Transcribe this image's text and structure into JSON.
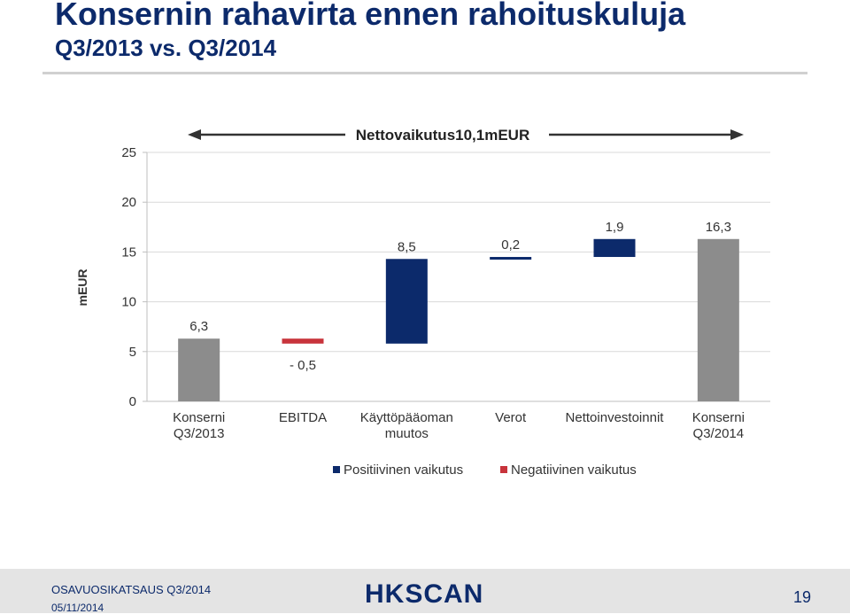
{
  "slide": {
    "title": "Konsernin rahavirta ennen rahoituskuluja",
    "subtitle": "Q3/2013 vs. Q3/2014"
  },
  "chart_data": {
    "type": "bar",
    "subtype": "waterfall",
    "title": "",
    "ylabel": "mEUR",
    "ylim": [
      0,
      25
    ],
    "yticks": [
      "0",
      "5",
      "10",
      "15",
      "20",
      "25"
    ],
    "grid": true,
    "categories": [
      [
        "Konserni",
        "Q3/2013"
      ],
      [
        "EBITDA"
      ],
      [
        "Käyttöpääoman",
        "muutos"
      ],
      [
        "Verot"
      ],
      [
        "Nettoinvestoinnit"
      ],
      [
        "Konserni",
        "Q3/2014"
      ]
    ],
    "bars": [
      {
        "start": 0,
        "end": 6.3,
        "kind": "total",
        "label": "6,3"
      },
      {
        "start": 6.3,
        "end": 5.8,
        "kind": "negative",
        "label": "- 0,5"
      },
      {
        "start": 5.8,
        "end": 14.3,
        "kind": "positive",
        "label": "8,5"
      },
      {
        "start": 14.3,
        "end": 14.5,
        "kind": "positive",
        "label": "0,2"
      },
      {
        "start": 14.5,
        "end": 16.3,
        "kind": "positive",
        "label": "1,9"
      },
      {
        "start": 0,
        "end": 16.3,
        "kind": "total",
        "label": "16,3"
      }
    ],
    "annotation": "Nettovaikutus10,1mEUR",
    "legend": {
      "placement": "bottom",
      "items": [
        {
          "label": "Positiivinen vaikutus",
          "color": "#0c2a6b"
        },
        {
          "label": "Negatiivinen vaikutus",
          "color": "#c8343c"
        }
      ]
    },
    "colors": {
      "total": "#8c8c8c",
      "positive": "#0c2a6b",
      "negative": "#c8343c"
    }
  },
  "footer": {
    "report": "OSAVUOSIKATSAUS Q3/2014",
    "date": "05/11/2014",
    "logo": "HKSCAN",
    "page": "19"
  }
}
